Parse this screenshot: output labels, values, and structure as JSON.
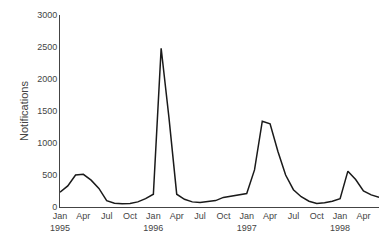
{
  "chart_data": {
    "type": "line",
    "ylabel": "Notifications",
    "categories": [
      "Jan\n1995",
      null,
      null,
      "Apr",
      null,
      null,
      "Jul",
      null,
      null,
      "Oct",
      null,
      null,
      "Jan\n1996",
      null,
      null,
      "Apr",
      null,
      null,
      "Jul",
      null,
      null,
      "Oct",
      null,
      null,
      "Jan\n1997",
      null,
      null,
      "Apr",
      null,
      null,
      "Jul",
      null,
      null,
      "Oct",
      null,
      null,
      "Jan\n1998",
      null,
      null,
      "Apr",
      null,
      null
    ],
    "values": [
      230,
      330,
      500,
      510,
      420,
      290,
      100,
      60,
      50,
      55,
      80,
      130,
      200,
      2480,
      1400,
      200,
      120,
      80,
      70,
      80,
      100,
      150,
      170,
      200,
      210,
      580,
      1340,
      1300,
      870,
      500,
      270,
      160,
      90,
      55,
      65,
      90,
      130,
      560,
      430,
      250,
      190,
      150
    ],
    "color": "#1a1a1a",
    "ylim": [
      0,
      3000
    ],
    "yticks": [
      0,
      500,
      1000,
      1500,
      2000,
      2500,
      3000
    ],
    "grid": false
  }
}
